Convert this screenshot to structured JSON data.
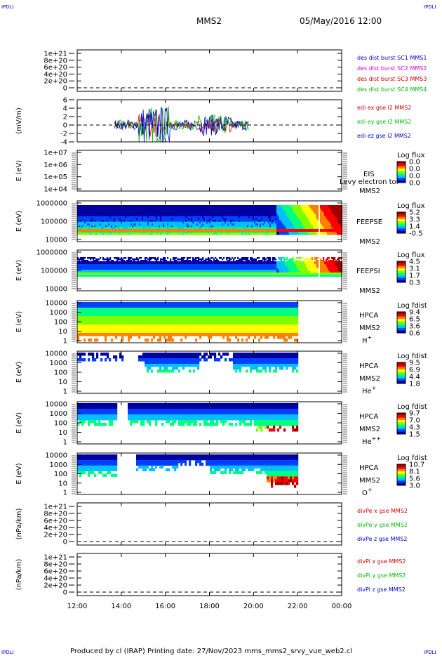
{
  "corner_label": "IPDLI",
  "header": {
    "title": "MMS2",
    "datetime": "05/May/2016 12:00"
  },
  "footer": {
    "text": "Produced by cl (IRAP)   Printing date: 27/Nov/2023   mms_mms2_srvy_vue_web2.cl"
  },
  "colors": {
    "red": "#cc0000",
    "magenta": "#dd00dd",
    "green": "#00bb00",
    "blue": "#0000cc",
    "colormap": [
      "#0000a0",
      "#0040ff",
      "#00c0ff",
      "#00ff80",
      "#80ff00",
      "#ffff00",
      "#ff8000",
      "#ff0000",
      "#a00000"
    ]
  },
  "chart_data": {
    "type": "multi-panel time series",
    "x": {
      "ticks": [
        "12:00",
        "14:00",
        "16:00",
        "18:00",
        "20:00",
        "22:00",
        "00:00"
      ],
      "range_hours": [
        12,
        24
      ]
    },
    "panels": [
      {
        "id": "dist",
        "type": "line",
        "ylabel": "",
        "yticks": [
          "1e+21",
          "8e+20",
          "6e+20",
          "4e+20",
          "2e+20",
          "0"
        ],
        "reference_line": 0,
        "legend": [
          {
            "text": "des dist burst SC1 MMS1",
            "color": "#0000cc"
          },
          {
            "text": "des dist burst SC2 MMS2",
            "color": "#dd00dd"
          },
          {
            "text": "des dist burst SC3 MMS3",
            "color": "#cc0000"
          },
          {
            "text": "des dist burst SC4 MMS4",
            "color": "#00bb00"
          }
        ]
      },
      {
        "id": "edi",
        "type": "line",
        "ylabel": "(mV/m)",
        "yticks": [
          "6",
          "4",
          "2",
          "0",
          "-2",
          "-4"
        ],
        "ylim": [
          -4,
          6
        ],
        "reference_line": 0,
        "data_range_hours": [
          13.7,
          19.8
        ],
        "legend": [
          {
            "text": "edi ex gse l2 MMS2",
            "color": "#cc0000"
          },
          {
            "text": "edi ey gse l2 MMS2",
            "color": "#00bb00"
          },
          {
            "text": "edi ez gse l2 MMS2",
            "color": "#0000cc"
          }
        ]
      },
      {
        "id": "eis",
        "type": "spectrogram",
        "ylabel": "E (eV)",
        "yticks": [
          "1e+07",
          "1e+06",
          "1e+05",
          "1e+04"
        ],
        "instrument": "EIS",
        "spacecraft": "MMS2",
        "overlay_text": "Levy electron tof",
        "colorbar_title": "Log flux",
        "colorbar_ticks": [
          "0.0",
          "0.0",
          "0.0",
          "0.0"
        ]
      },
      {
        "id": "feepse",
        "type": "spectrogram",
        "ylabel": "E (eV)",
        "yticks": [
          "1000000",
          "100000",
          "10000"
        ],
        "instrument": "FEEPSE",
        "spacecraft": "MMS2",
        "colorbar_title": "Log flux",
        "colorbar_ticks": [
          "5.2",
          "3.3",
          "1.4",
          "-0.5"
        ]
      },
      {
        "id": "feepsi",
        "type": "spectrogram",
        "ylabel": "E (eV)",
        "yticks": [
          "1000000",
          "100000",
          "10000"
        ],
        "instrument": "FEEPSI",
        "spacecraft": "MMS2",
        "colorbar_title": "Log flux",
        "colorbar_ticks": [
          "4.5",
          "3.1",
          "1.7",
          "0.3"
        ]
      },
      {
        "id": "hpca_h",
        "type": "spectrogram",
        "ylabel": "E (eV)",
        "yticks": [
          "10000",
          "1000",
          "100",
          "10",
          "1"
        ],
        "instrument": "HPCA",
        "spacecraft": "MMS2",
        "species": "H",
        "charge": "+",
        "colorbar_title": "Log fdist",
        "colorbar_ticks": [
          "9.4",
          "6.5",
          "3.6",
          "0.6"
        ]
      },
      {
        "id": "hpca_he",
        "type": "spectrogram",
        "ylabel": "E (eV)",
        "yticks": [
          "10000",
          "1000",
          "100",
          "10",
          "1"
        ],
        "instrument": "HPCA",
        "spacecraft": "MMS2",
        "species": "He",
        "charge": "+",
        "colorbar_title": "Log fdist",
        "colorbar_ticks": [
          "9.5",
          "6.9",
          "4.4",
          "1.8"
        ]
      },
      {
        "id": "hpca_he2",
        "type": "spectrogram",
        "ylabel": "E (eV)",
        "yticks": [
          "10000",
          "1000",
          "100",
          "10",
          "1"
        ],
        "instrument": "HPCA",
        "spacecraft": "MMS2",
        "species": "He",
        "charge": "++",
        "colorbar_title": "Log fdist",
        "colorbar_ticks": [
          "9.7",
          "7.0",
          "4.3",
          "1.5"
        ]
      },
      {
        "id": "hpca_o",
        "type": "spectrogram",
        "ylabel": "E (eV)",
        "yticks": [
          "10000",
          "1000",
          "100",
          "10",
          "1"
        ],
        "instrument": "HPCA",
        "spacecraft": "MMS2",
        "species": "O",
        "charge": "+",
        "colorbar_title": "Log fdist",
        "colorbar_ticks": [
          "10.7",
          "8.1",
          "5.6",
          "3.0"
        ]
      },
      {
        "id": "divpe",
        "type": "line",
        "ylabel": "(nPa/km)",
        "yticks": [
          "1e+21",
          "8e+20",
          "6e+20",
          "4e+20",
          "2e+20",
          "0"
        ],
        "reference_line": 0,
        "legend": [
          {
            "text": "divPe x gse MMS2",
            "color": "#cc0000"
          },
          {
            "text": "divPe y gse MMS2",
            "color": "#00bb00"
          },
          {
            "text": "divPe z gse MMS2",
            "color": "#0000cc"
          }
        ]
      },
      {
        "id": "divpi",
        "type": "line",
        "ylabel": "(nPa/km)",
        "yticks": [
          "1e+21",
          "8e+20",
          "6e+20",
          "4e+20",
          "2e+20",
          "0"
        ],
        "reference_line": 0,
        "legend": [
          {
            "text": "divPi x gse MMS2",
            "color": "#cc0000"
          },
          {
            "text": "divPi y gse MMS2",
            "color": "#00bb00"
          },
          {
            "text": "divPi z gse MMS2",
            "color": "#0000cc"
          }
        ]
      }
    ]
  }
}
